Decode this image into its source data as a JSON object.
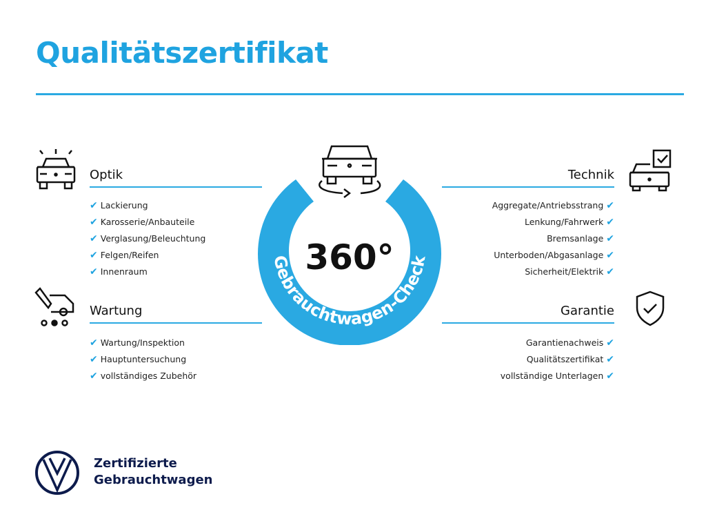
{
  "title": "Qualitätszertifikat",
  "colors": {
    "accent": "#1fa3e0",
    "ring": "#2aa9e2",
    "brand": "#0d1b4c"
  },
  "center": {
    "degrees": "360°",
    "ring_text": "Gebrauchtwagen-Check",
    "icon": "car-rotate-icon"
  },
  "sections": {
    "optik": {
      "title": "Optik",
      "icon": "car-lights-icon",
      "items": [
        "Lackierung",
        "Karosserie/Anbauteile",
        "Verglasung/Beleuchtung",
        "Felgen/Reifen",
        "Innenraum"
      ]
    },
    "wartung": {
      "title": "Wartung",
      "icon": "service-car-icon",
      "items": [
        "Wartung/Inspektion",
        "Hauptuntersuchung",
        "vollständiges Zubehör"
      ]
    },
    "technik": {
      "title": "Technik",
      "icon": "car-checklist-icon",
      "items": [
        "Aggregate/Antriebsstrang",
        "Lenkung/Fahrwerk",
        "Bremsanlage",
        "Unterboden/Abgasanlage",
        "Sicherheit/Elektrik"
      ]
    },
    "garantie": {
      "title": "Garantie",
      "icon": "shield-check-icon",
      "items": [
        "Garantienachweis",
        "Qualitätszertifikat",
        "vollständige Unterlagen"
      ]
    }
  },
  "footer": {
    "line1": "Zertifizierte",
    "line2": "Gebrauchtwagen",
    "logo": "VW"
  }
}
